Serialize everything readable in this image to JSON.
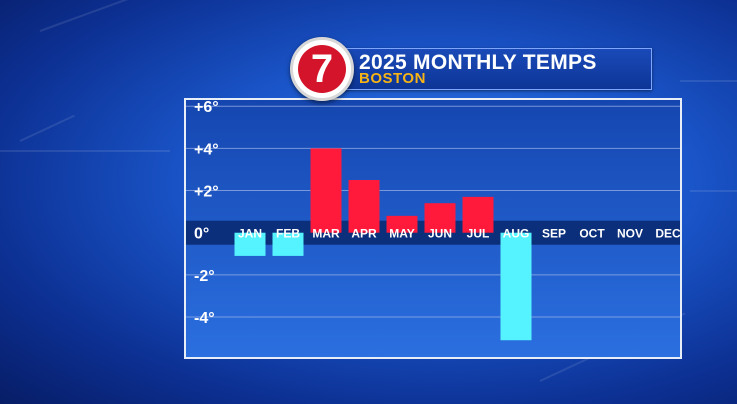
{
  "header": {
    "logo_text": "7",
    "title": "2025 MONTHLY TEMPS",
    "subtitle": "BOSTON"
  },
  "colors": {
    "positive_bar": "#ff1a3c",
    "negative_bar": "#55f2ff",
    "zero_band": "#0b2f7a",
    "gridline": "#9fb8e8",
    "label_text": "#ffffff"
  },
  "chart_data": {
    "type": "bar",
    "title": "2025 MONTHLY TEMPS",
    "subtitle": "BOSTON",
    "categories": [
      "JAN",
      "FEB",
      "MAR",
      "APR",
      "MAY",
      "JUN",
      "JUL",
      "AUG",
      "SEP",
      "OCT",
      "NOV",
      "DEC"
    ],
    "values": [
      -1.1,
      -1.1,
      4.0,
      2.5,
      0.8,
      1.4,
      1.7,
      -5.1,
      null,
      null,
      null,
      null
    ],
    "ytick_labels": [
      {
        "value": 6,
        "label": "+6°"
      },
      {
        "value": 4,
        "label": "+4°"
      },
      {
        "value": 2,
        "label": "+2°"
      },
      {
        "value": 0,
        "label": "0°"
      },
      {
        "value": -2,
        "label": "-2°"
      },
      {
        "value": -4,
        "label": "-4°"
      }
    ],
    "ylim": [
      -5.8,
      6.2
    ],
    "grid": true,
    "legend": "none"
  }
}
